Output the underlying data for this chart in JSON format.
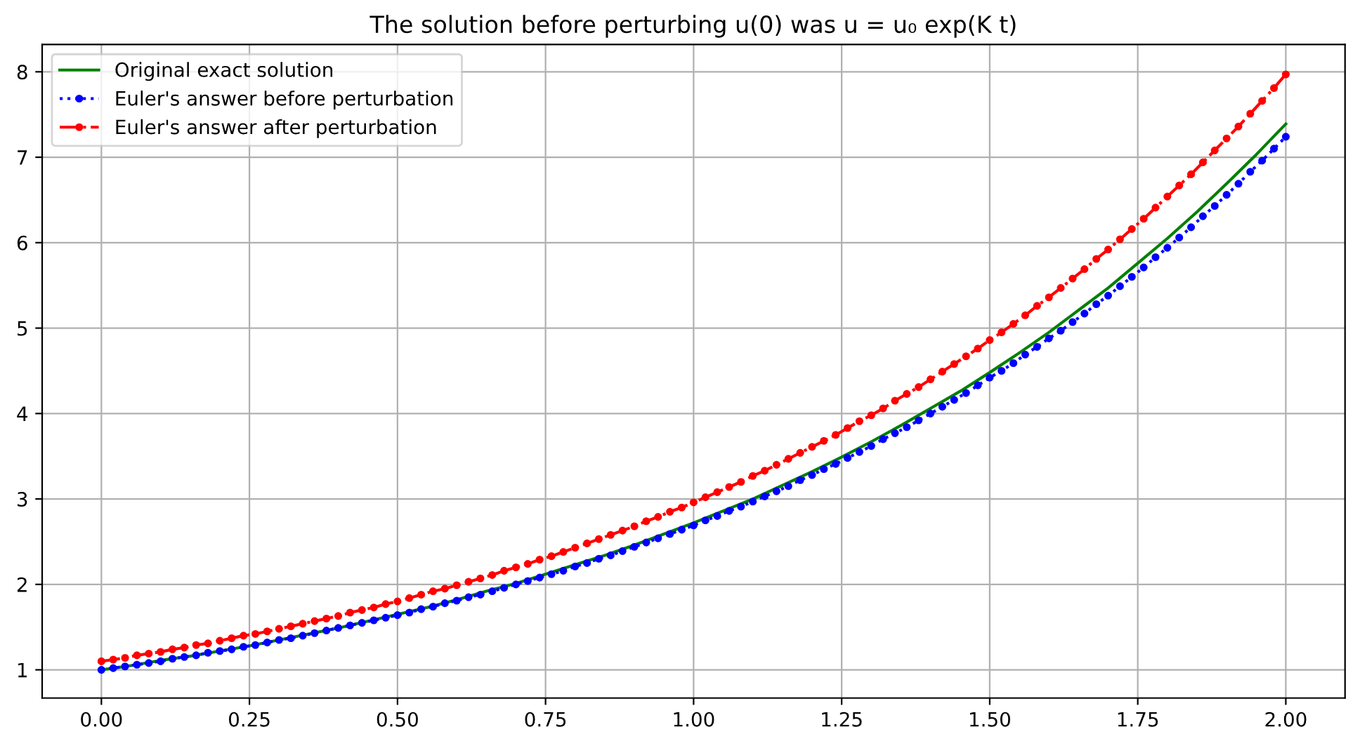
{
  "chart_data": {
    "type": "line",
    "title": "The solution before perturbing u(0) was u = u₀ exp(K t)",
    "series": [
      {
        "name": "Original exact solution",
        "color": "#008000",
        "marker": "none",
        "line_style": "solid",
        "x": [
          0,
          0.05,
          0.1,
          0.15,
          0.2,
          0.25,
          0.3,
          0.35,
          0.4,
          0.45,
          0.5,
          0.55,
          0.6,
          0.65,
          0.7,
          0.75,
          0.8,
          0.85,
          0.9,
          0.95,
          1,
          1.05,
          1.1,
          1.15,
          1.2,
          1.25,
          1.3,
          1.35,
          1.4,
          1.45,
          1.5,
          1.55,
          1.6,
          1.65,
          1.7,
          1.75,
          1.8,
          1.85,
          1.9,
          1.95,
          2
        ],
        "values": [
          1.0,
          1.05,
          1.11,
          1.16,
          1.22,
          1.28,
          1.35,
          1.42,
          1.49,
          1.57,
          1.65,
          1.73,
          1.82,
          1.92,
          2.01,
          2.12,
          2.23,
          2.34,
          2.46,
          2.59,
          2.72,
          2.86,
          3.0,
          3.16,
          3.32,
          3.49,
          3.67,
          3.86,
          4.06,
          4.26,
          4.48,
          4.71,
          4.95,
          5.21,
          5.47,
          5.76,
          6.05,
          6.36,
          6.69,
          7.03,
          7.39
        ]
      },
      {
        "name": "Euler's answer before perturbation",
        "color": "#0000ff",
        "marker": "circle",
        "line_style": "dotted",
        "x": [
          0,
          0.02,
          0.04,
          0.06,
          0.08,
          0.1,
          0.12,
          0.14,
          0.16,
          0.18,
          0.2,
          0.22,
          0.24,
          0.26,
          0.28,
          0.3,
          0.32,
          0.34,
          0.36,
          0.38,
          0.4,
          0.42,
          0.44,
          0.46,
          0.48,
          0.5,
          0.52,
          0.54,
          0.56,
          0.58,
          0.6,
          0.62,
          0.64,
          0.66,
          0.68,
          0.7,
          0.72,
          0.74,
          0.76,
          0.78,
          0.8,
          0.82,
          0.84,
          0.86,
          0.88,
          0.9,
          0.92,
          0.94,
          0.96,
          0.98,
          1,
          1.02,
          1.04,
          1.06,
          1.08,
          1.1,
          1.12,
          1.14,
          1.16,
          1.18,
          1.2,
          1.22,
          1.24,
          1.26,
          1.28,
          1.3,
          1.32,
          1.34,
          1.36,
          1.38,
          1.4,
          1.42,
          1.44,
          1.46,
          1.48,
          1.5,
          1.52,
          1.54,
          1.56,
          1.58,
          1.6,
          1.62,
          1.64,
          1.66,
          1.68,
          1.7,
          1.72,
          1.74,
          1.76,
          1.78,
          1.8,
          1.82,
          1.84,
          1.86,
          1.88,
          1.9,
          1.92,
          1.94,
          1.96,
          1.98,
          2
        ],
        "values": [
          1.0,
          1.02,
          1.04,
          1.06,
          1.08,
          1.1,
          1.13,
          1.15,
          1.17,
          1.2,
          1.22,
          1.24,
          1.27,
          1.29,
          1.32,
          1.35,
          1.37,
          1.4,
          1.43,
          1.46,
          1.49,
          1.52,
          1.55,
          1.58,
          1.61,
          1.64,
          1.67,
          1.71,
          1.74,
          1.78,
          1.81,
          1.85,
          1.88,
          1.92,
          1.96,
          2.0,
          2.04,
          2.08,
          2.12,
          2.16,
          2.21,
          2.25,
          2.3,
          2.34,
          2.39,
          2.44,
          2.49,
          2.54,
          2.59,
          2.64,
          2.69,
          2.75,
          2.8,
          2.86,
          2.91,
          2.97,
          3.03,
          3.09,
          3.15,
          3.22,
          3.28,
          3.35,
          3.41,
          3.48,
          3.55,
          3.62,
          3.7,
          3.77,
          3.84,
          3.92,
          4.0,
          4.08,
          4.16,
          4.24,
          4.33,
          4.42,
          4.5,
          4.59,
          4.69,
          4.78,
          4.88,
          4.97,
          5.07,
          5.17,
          5.28,
          5.38,
          5.49,
          5.6,
          5.71,
          5.83,
          5.94,
          6.06,
          6.18,
          6.31,
          6.43,
          6.56,
          6.69,
          6.83,
          6.96,
          7.1,
          7.24
        ]
      },
      {
        "name": "Euler's answer after perturbation",
        "color": "#ff0000",
        "marker": "circle",
        "line_style": "dashdot",
        "x": [
          0,
          0.02,
          0.04,
          0.06,
          0.08,
          0.1,
          0.12,
          0.14,
          0.16,
          0.18,
          0.2,
          0.22,
          0.24,
          0.26,
          0.28,
          0.3,
          0.32,
          0.34,
          0.36,
          0.38,
          0.4,
          0.42,
          0.44,
          0.46,
          0.48,
          0.5,
          0.52,
          0.54,
          0.56,
          0.58,
          0.6,
          0.62,
          0.64,
          0.66,
          0.68,
          0.7,
          0.72,
          0.74,
          0.76,
          0.78,
          0.8,
          0.82,
          0.84,
          0.86,
          0.88,
          0.9,
          0.92,
          0.94,
          0.96,
          0.98,
          1,
          1.02,
          1.04,
          1.06,
          1.08,
          1.1,
          1.12,
          1.14,
          1.16,
          1.18,
          1.2,
          1.22,
          1.24,
          1.26,
          1.28,
          1.3,
          1.32,
          1.34,
          1.36,
          1.38,
          1.4,
          1.42,
          1.44,
          1.46,
          1.48,
          1.5,
          1.52,
          1.54,
          1.56,
          1.58,
          1.6,
          1.62,
          1.64,
          1.66,
          1.68,
          1.7,
          1.72,
          1.74,
          1.76,
          1.78,
          1.8,
          1.82,
          1.84,
          1.86,
          1.88,
          1.9,
          1.92,
          1.94,
          1.96,
          1.98,
          2
        ],
        "values": [
          1.1,
          1.12,
          1.14,
          1.17,
          1.19,
          1.21,
          1.24,
          1.26,
          1.29,
          1.31,
          1.34,
          1.37,
          1.4,
          1.42,
          1.45,
          1.48,
          1.51,
          1.54,
          1.57,
          1.6,
          1.63,
          1.67,
          1.7,
          1.73,
          1.77,
          1.8,
          1.84,
          1.88,
          1.92,
          1.95,
          1.99,
          2.03,
          2.07,
          2.11,
          2.16,
          2.2,
          2.24,
          2.29,
          2.33,
          2.38,
          2.43,
          2.48,
          2.53,
          2.58,
          2.63,
          2.68,
          2.74,
          2.79,
          2.85,
          2.9,
          2.96,
          3.02,
          3.08,
          3.14,
          3.2,
          3.27,
          3.33,
          3.4,
          3.47,
          3.54,
          3.61,
          3.68,
          3.75,
          3.83,
          3.91,
          3.98,
          4.06,
          4.15,
          4.23,
          4.31,
          4.4,
          4.49,
          4.58,
          4.67,
          4.76,
          4.86,
          4.95,
          5.05,
          5.15,
          5.26,
          5.36,
          5.47,
          5.58,
          5.69,
          5.81,
          5.92,
          6.04,
          6.16,
          6.28,
          6.41,
          6.54,
          6.67,
          6.8,
          6.94,
          7.08,
          7.22,
          7.36,
          7.51,
          7.66,
          7.81,
          7.97
        ]
      }
    ],
    "xlim": [
      -0.1,
      2.1
    ],
    "ylim": [
      0.67,
      8.32
    ],
    "xticks": [
      {
        "value": 0,
        "label": "0.00"
      },
      {
        "value": 0.25,
        "label": "0.25"
      },
      {
        "value": 0.5,
        "label": "0.50"
      },
      {
        "value": 0.75,
        "label": "0.75"
      },
      {
        "value": 1,
        "label": "1.00"
      },
      {
        "value": 1.25,
        "label": "1.25"
      },
      {
        "value": 1.5,
        "label": "1.50"
      },
      {
        "value": 1.75,
        "label": "1.75"
      },
      {
        "value": 2,
        "label": "2.00"
      }
    ],
    "yticks": [
      1,
      2,
      3,
      4,
      5,
      6,
      7,
      8
    ],
    "grid": true,
    "legend": "top left"
  }
}
